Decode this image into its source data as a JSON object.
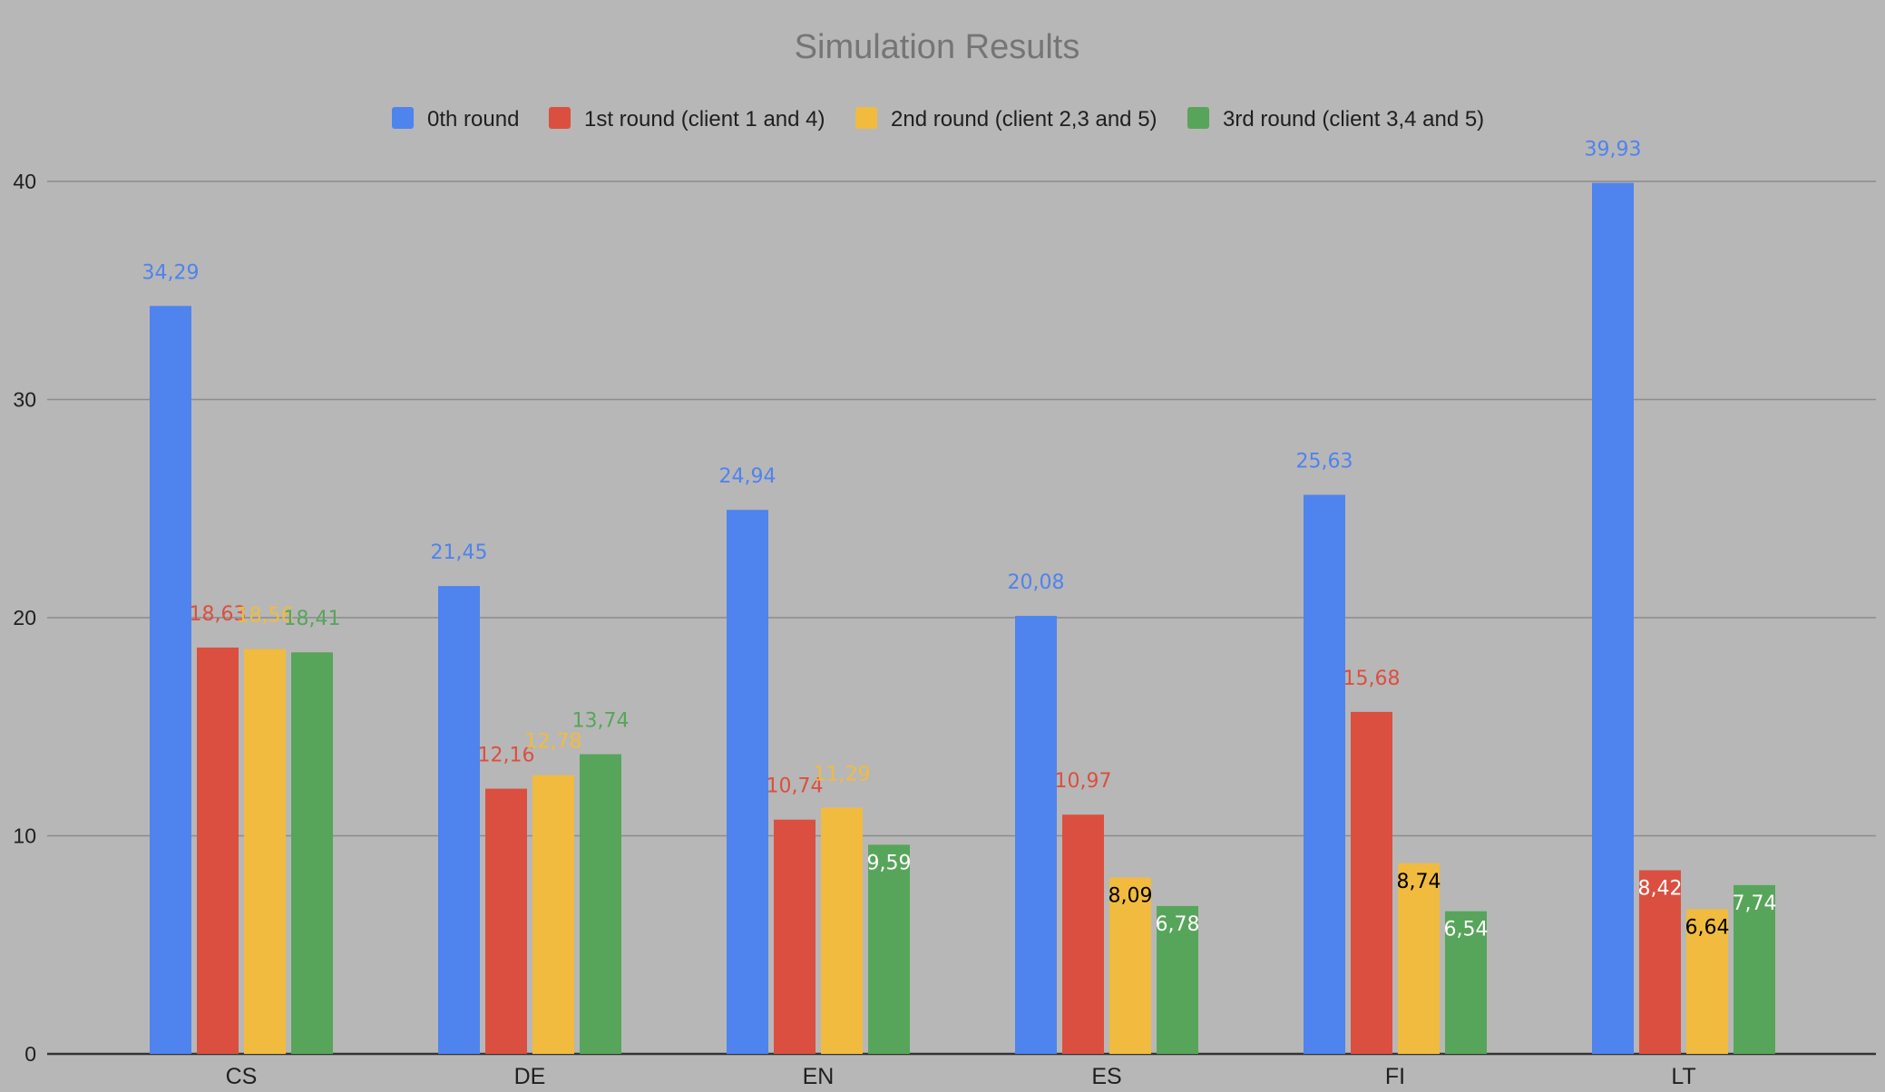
{
  "chart_data": {
    "type": "bar",
    "title": "Simulation Results",
    "categories": [
      "CS",
      "DE",
      "EN",
      "ES",
      "FI",
      "LT"
    ],
    "series": [
      {
        "name": "0th round",
        "color": "#4f83ee",
        "values": [
          34.29,
          21.45,
          24.94,
          20.08,
          25.63,
          39.93
        ],
        "labels": [
          "34,29",
          "21,45",
          "24,94",
          "20,08",
          "25,63",
          "39,93"
        ]
      },
      {
        "name": "1st round (client 1 and 4)",
        "color": "#db4f40",
        "values": [
          18.63,
          12.16,
          10.74,
          10.97,
          15.68,
          8.42
        ],
        "labels": [
          "18,63",
          "12,16",
          "10,74",
          "10,97",
          "15,68",
          "8,42"
        ]
      },
      {
        "name": "2nd round (client 2,3 and 5)",
        "color": "#f1bb3f",
        "values": [
          18.56,
          12.78,
          11.29,
          8.09,
          8.74,
          6.64
        ],
        "labels": [
          "18,56",
          "12,78",
          "11,29",
          "8,09",
          "8,74",
          "6,64"
        ]
      },
      {
        "name": "3rd round (client 3,4 and 5)",
        "color": "#57a55a",
        "values": [
          18.41,
          13.74,
          9.59,
          6.78,
          6.54,
          7.74
        ],
        "labels": [
          "18,41",
          "13,74",
          "9,59",
          "6,78",
          "6,54",
          "7,74"
        ]
      }
    ],
    "ylim": [
      0,
      40
    ],
    "yticks": [
      "0",
      "10",
      "20",
      "30",
      "40"
    ],
    "grid": true,
    "legend_position": "top-center",
    "xlabel": "",
    "ylabel": ""
  }
}
